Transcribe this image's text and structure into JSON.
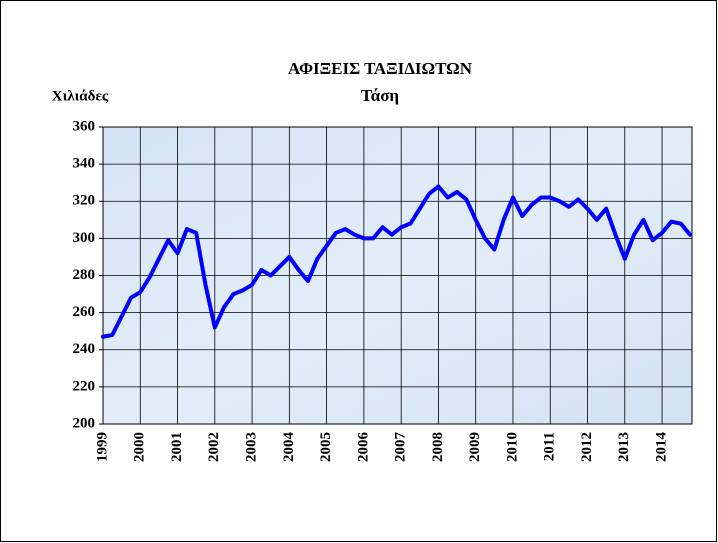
{
  "chart_data": {
    "type": "line",
    "title": "ΑΦΙΞΕΙΣ ΤΑΞΙΔΙΩΤΩΝ",
    "subtitle": "Τάση",
    "y_label": "Χιλιάδες",
    "categories": [
      "1999",
      null,
      null,
      null,
      "2000",
      null,
      null,
      null,
      "2001",
      null,
      null,
      null,
      "2002",
      null,
      null,
      null,
      "2003",
      null,
      null,
      null,
      "2004",
      null,
      null,
      null,
      "2005",
      null,
      null,
      null,
      "2006",
      null,
      null,
      null,
      "2007",
      null,
      null,
      null,
      "2008",
      null,
      null,
      null,
      "2009",
      null,
      null,
      null,
      "2010",
      null,
      null,
      null,
      "2011",
      null,
      null,
      null,
      "2012",
      null,
      null,
      null,
      "2013",
      null,
      null,
      null,
      "2014",
      null,
      null,
      null
    ],
    "series": [
      {
        "name": "Τάση",
        "color": "#0000ff",
        "values": [
          247,
          248,
          258,
          268,
          271,
          279,
          289,
          299,
          292,
          305,
          303,
          275,
          252,
          263,
          270,
          272,
          275,
          283,
          280,
          285,
          290,
          283,
          277,
          289,
          296,
          303,
          305,
          302,
          300,
          300,
          306,
          302,
          306,
          308,
          316,
          324,
          328,
          322,
          325,
          321,
          310,
          300,
          294,
          310,
          322,
          312,
          318,
          322,
          322,
          320,
          317,
          321,
          316,
          310,
          316,
          302,
          289,
          302,
          310,
          299,
          303,
          309,
          308,
          302
        ]
      }
    ],
    "ylim": [
      200,
      360
    ],
    "yticks": [
      200,
      220,
      240,
      260,
      280,
      300,
      320,
      340,
      360
    ],
    "grid": true
  }
}
